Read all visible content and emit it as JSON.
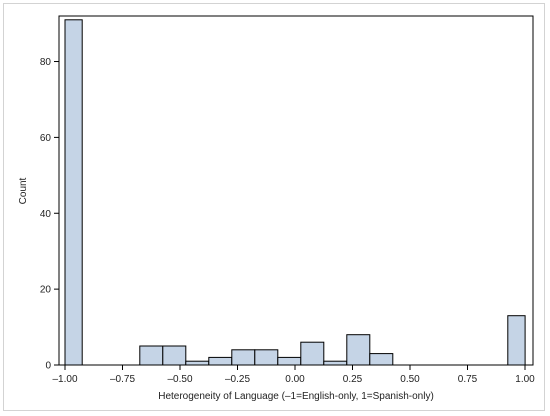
{
  "chart_data": {
    "type": "histogram",
    "title": "",
    "xlabel": "Heterogeneity of Language (–1=English-only, 1=Spanish-only)",
    "ylabel": "Count",
    "xlim": [
      -1.0,
      1.0
    ],
    "ylim": [
      0,
      92
    ],
    "x_ticks": [
      -1.0,
      -0.75,
      -0.5,
      -0.25,
      0.0,
      0.25,
      0.5,
      0.75,
      1.0
    ],
    "x_tick_labels": [
      "–1.00",
      "–0.75",
      "–0.50",
      "–0.25",
      "0.00",
      "0.25",
      "0.50",
      "0.75",
      "1.00"
    ],
    "y_ticks": [
      0,
      20,
      40,
      60,
      80
    ],
    "y_tick_labels": [
      "0",
      "20",
      "40",
      "60",
      "80"
    ],
    "grid": false,
    "legend": "none",
    "bar_color": "#c5d4e6",
    "bar_edge_color": "#000000",
    "bins": [
      {
        "x0": -1.0,
        "x1": -0.925,
        "count": 91
      },
      {
        "x0": -0.925,
        "x1": -0.825,
        "count": 0
      },
      {
        "x0": -0.825,
        "x1": -0.675,
        "count": 0
      },
      {
        "x0": -0.675,
        "x1": -0.575,
        "count": 5
      },
      {
        "x0": -0.575,
        "x1": -0.475,
        "count": 5
      },
      {
        "x0": -0.475,
        "x1": -0.375,
        "count": 1
      },
      {
        "x0": -0.375,
        "x1": -0.275,
        "count": 2
      },
      {
        "x0": -0.275,
        "x1": -0.175,
        "count": 4
      },
      {
        "x0": -0.175,
        "x1": -0.075,
        "count": 4
      },
      {
        "x0": -0.075,
        "x1": 0.025,
        "count": 2
      },
      {
        "x0": 0.025,
        "x1": 0.125,
        "count": 6
      },
      {
        "x0": 0.125,
        "x1": 0.225,
        "count": 1
      },
      {
        "x0": 0.225,
        "x1": 0.325,
        "count": 8
      },
      {
        "x0": 0.325,
        "x1": 0.425,
        "count": 3
      },
      {
        "x0": 0.425,
        "x1": 0.525,
        "count": 0
      },
      {
        "x0": 0.525,
        "x1": 0.625,
        "count": 0
      },
      {
        "x0": 0.625,
        "x1": 0.725,
        "count": 0
      },
      {
        "x0": 0.725,
        "x1": 0.825,
        "count": 0
      },
      {
        "x0": 0.825,
        "x1": 0.925,
        "count": 0
      },
      {
        "x0": 0.925,
        "x1": 1.0,
        "count": 13
      }
    ]
  }
}
